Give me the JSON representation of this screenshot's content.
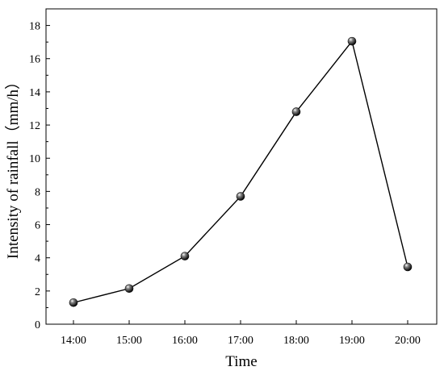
{
  "chart_data": {
    "type": "line",
    "xlabel": "Time",
    "ylabel": "Intensity of rainfall（mm/h）",
    "categories": [
      "14:00",
      "15:00",
      "16:00",
      "17:00",
      "18:00",
      "19:00",
      "20:00"
    ],
    "series": [
      {
        "values": [
          1.3,
          2.15,
          4.1,
          7.7,
          12.8,
          17.05,
          3.45
        ]
      }
    ],
    "ylim": [
      0,
      19
    ],
    "yticks": [
      0,
      2,
      4,
      6,
      8,
      10,
      12,
      14,
      16,
      18
    ],
    "grid": false,
    "legend": "none",
    "colors": {
      "line": "#000000",
      "marker": "#111111"
    }
  }
}
